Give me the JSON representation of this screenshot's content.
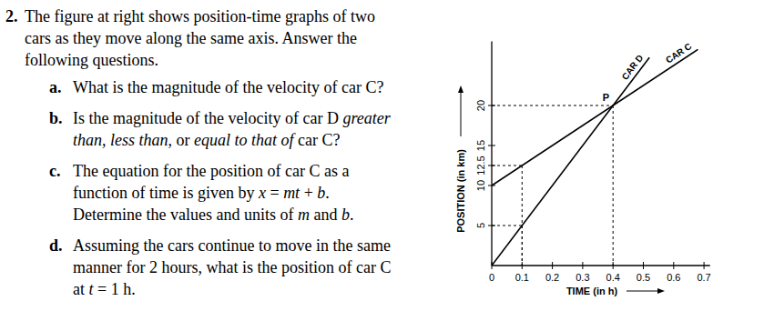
{
  "document": {
    "question": {
      "number": "2.",
      "intro": [
        [
          {
            "t": "The figure at right shows position-time graphs of two",
            "i": false
          }
        ],
        [
          {
            "t": "cars as they move along the same axis. Answer the",
            "i": false
          }
        ],
        [
          {
            "t": "following questions.",
            "i": false
          }
        ]
      ],
      "parts": [
        {
          "letter": "a.",
          "lines": [
            [
              {
                "t": "What is the magnitude of the velocity of car C?",
                "i": false
              }
            ]
          ]
        },
        {
          "letter": "b.",
          "lines": [
            [
              {
                "t": "Is the magnitude of the velocity of car D ",
                "i": false
              },
              {
                "t": "greater",
                "i": true
              }
            ],
            [
              {
                "t": "than, less than,",
                "i": true
              },
              {
                "t": " or ",
                "i": false
              },
              {
                "t": "equal to that of",
                "i": true
              },
              {
                "t": " car C?",
                "i": false
              }
            ]
          ]
        },
        {
          "letter": "c.",
          "lines": [
            [
              {
                "t": "The equation for the position of car C as a",
                "i": false
              }
            ],
            [
              {
                "t": "function of time is given by ",
                "i": false
              },
              {
                "t": "x",
                "i": true
              },
              {
                "t": " = ",
                "i": false
              },
              {
                "t": "mt",
                "i": true
              },
              {
                "t": " + ",
                "i": false
              },
              {
                "t": "b",
                "i": true
              },
              {
                "t": ".",
                "i": false
              }
            ],
            [
              {
                "t": "Determine the values and units of ",
                "i": false
              },
              {
                "t": "m",
                "i": true
              },
              {
                "t": " and ",
                "i": false
              },
              {
                "t": "b",
                "i": true
              },
              {
                "t": ".",
                "i": false
              }
            ]
          ]
        },
        {
          "letter": "d.",
          "lines": [
            [
              {
                "t": "Assuming the cars continue to move in the same",
                "i": false
              }
            ],
            [
              {
                "t": "manner for 2 hours, what is the position of car C",
                "i": false
              }
            ],
            [
              {
                "t": "at ",
                "i": false
              },
              {
                "t": "t",
                "i": true
              },
              {
                "t": " = 1 h.",
                "i": false
              }
            ]
          ]
        }
      ]
    }
  },
  "chart_data": {
    "type": "line",
    "x_label": "TIME (in h)",
    "y_label": "POSITION (in km)",
    "xlim": [
      0,
      0.72
    ],
    "ylim": [
      0,
      28
    ],
    "xticks": [
      0,
      0.1,
      0.2,
      0.3,
      0.4,
      0.5,
      0.6,
      0.7
    ],
    "yticks": [
      5,
      10,
      12.5,
      15,
      20
    ],
    "grid": false,
    "series": [
      {
        "name": "CAR D",
        "color": "#000000",
        "x": [
          0,
          0.52
        ],
        "values": [
          0,
          26
        ]
      },
      {
        "name": "CAR C",
        "color": "#000000",
        "x": [
          0,
          0.68
        ],
        "values": [
          10,
          27
        ]
      }
    ],
    "reference_points": [
      {
        "x": 0.4,
        "y": 20
      },
      {
        "x": 0.1,
        "y": 12.5
      },
      {
        "x": 0.1,
        "y": 5
      }
    ],
    "annotations": [
      {
        "text": "P",
        "x": 0.4,
        "y": 20
      }
    ]
  }
}
